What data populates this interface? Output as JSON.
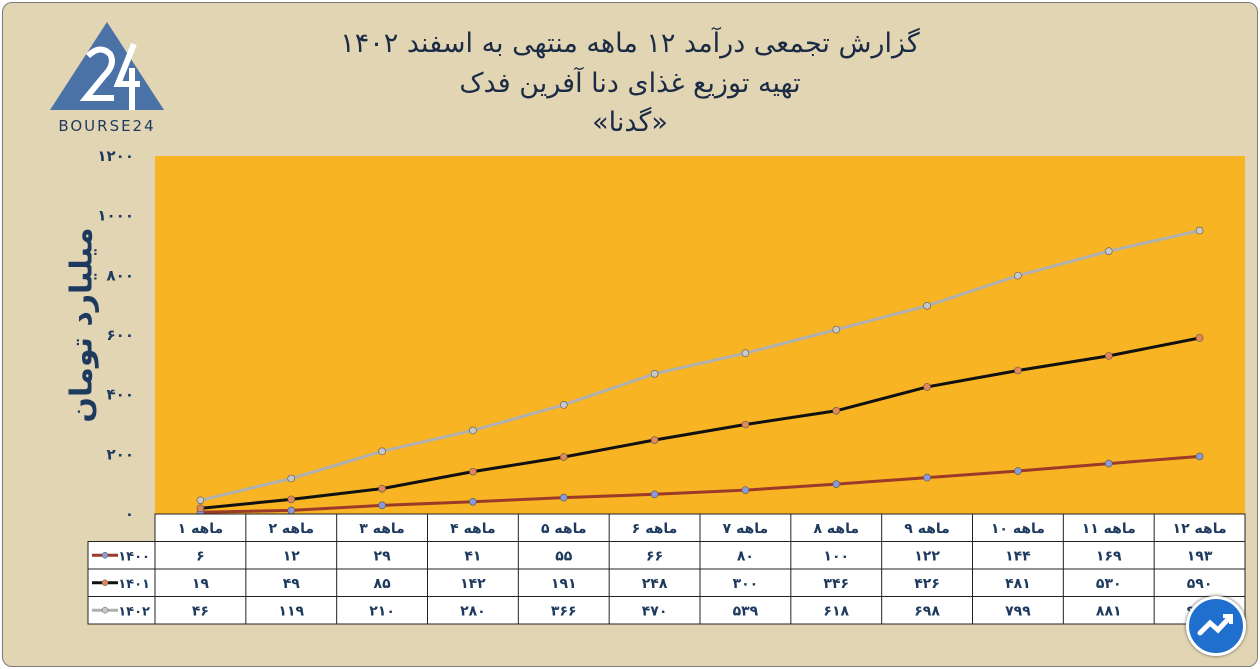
{
  "title": {
    "line1": "گزارش تجمعی درآمد ۱۲ ماهه منتهی به اسفند ۱۴۰۲",
    "line2": "تهیه توزیع غذای دنا آفرین فدک",
    "line3": "«گدنا»"
  },
  "logo": {
    "text": "BOURSE24"
  },
  "colors": {
    "plot_background": "#f8b422",
    "panel": "#e1d5b3",
    "y1400": "#9c3a2a",
    "y1401": "#111111",
    "y1402": "#b0b0b0",
    "marker1400": "#8a9ad6",
    "marker_other": "#e3875a"
  },
  "chart_data": {
    "type": "line",
    "ylabel": "میلیارد تومان",
    "xlabel": "",
    "ylim": [
      0,
      1200
    ],
    "yticks": [
      "۰",
      "۲۰۰",
      "۴۰۰",
      "۶۰۰",
      "۸۰۰",
      "۱۰۰۰",
      "۱۲۰۰"
    ],
    "ytick_values": [
      0,
      200,
      400,
      600,
      800,
      1000,
      1200
    ],
    "categories": [
      "۱ ماهه",
      "۲ ماهه",
      "۳ ماهه",
      "۴ ماهه",
      "۵ ماهه",
      "۶ ماهه",
      "۷ ماهه",
      "۸ ماهه",
      "۹ ماهه",
      "۱۰ ماهه",
      "۱۱ ماهه",
      "۱۲ ماهه"
    ],
    "grid": false,
    "legend": "data-table",
    "series": [
      {
        "name": "۱۴۰۰",
        "values": [
          6,
          12,
          29,
          41,
          55,
          66,
          80,
          100,
          122,
          144,
          169,
          193
        ],
        "labels": [
          "۶",
          "۱۲",
          "۲۹",
          "۴۱",
          "۵۵",
          "۶۶",
          "۸۰",
          "۱۰۰",
          "۱۲۲",
          "۱۴۴",
          "۱۶۹",
          "۱۹۳"
        ]
      },
      {
        "name": "۱۴۰۱",
        "values": [
          19,
          49,
          85,
          142,
          191,
          248,
          300,
          346,
          426,
          481,
          530,
          590
        ],
        "labels": [
          "۱۹",
          "۴۹",
          "۸۵",
          "۱۴۲",
          "۱۹۱",
          "۲۴۸",
          "۳۰۰",
          "۳۴۶",
          "۴۲۶",
          "۴۸۱",
          "۵۳۰",
          "۵۹۰"
        ]
      },
      {
        "name": "۱۴۰۲",
        "values": [
          46,
          119,
          210,
          280,
          366,
          470,
          539,
          618,
          698,
          799,
          881,
          950
        ],
        "labels": [
          "۴۶",
          "۱۱۹",
          "۲۱۰",
          "۲۸۰",
          "۳۶۶",
          "۴۷۰",
          "۵۳۹",
          "۶۱۸",
          "۶۹۸",
          "۷۹۹",
          "۸۸۱",
          "۹۵۰"
        ]
      }
    ]
  }
}
